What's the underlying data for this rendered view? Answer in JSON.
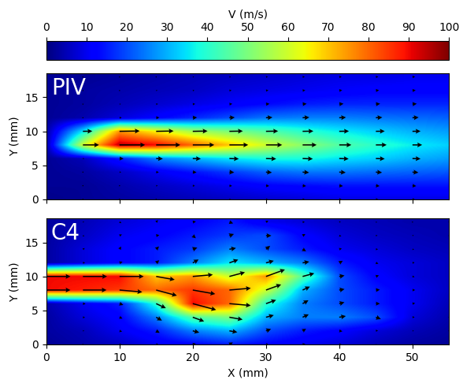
{
  "colorbar": {
    "label": "V (m/s)",
    "range": [
      0,
      100
    ],
    "ticks": [
      0,
      10,
      20,
      30,
      40,
      50,
      60,
      70,
      80,
      90,
      100
    ],
    "color": "jet"
  },
  "chart_data": [
    {
      "type": "heatmap",
      "title": "PIV",
      "ylabel": "Y (mm)",
      "tick_labels": "y",
      "x": [
        0,
        5,
        10,
        15,
        20,
        25,
        30,
        35,
        40,
        45,
        50,
        55
      ],
      "y": [
        0,
        2,
        4,
        6,
        8,
        10,
        12,
        14,
        16,
        18
      ],
      "xlim": [
        0,
        55
      ],
      "ylim": [
        0,
        18.5
      ],
      "xticks": [
        0,
        10,
        20,
        30,
        40,
        50
      ],
      "yticks": [
        0,
        5,
        10,
        15
      ],
      "values": [
        [
          1,
          2,
          3,
          4,
          5,
          6,
          7,
          8,
          9,
          9,
          9,
          9
        ],
        [
          2,
          2,
          4,
          6,
          8,
          10,
          12,
          13,
          14,
          14,
          14,
          14
        ],
        [
          2,
          3,
          6,
          10,
          14,
          18,
          22,
          24,
          24,
          23,
          22,
          21
        ],
        [
          2,
          5,
          15,
          25,
          30,
          35,
          38,
          38,
          35,
          33,
          30,
          28
        ],
        [
          3,
          60,
          95,
          90,
          80,
          70,
          60,
          52,
          45,
          40,
          36,
          33
        ],
        [
          3,
          35,
          75,
          65,
          55,
          50,
          45,
          40,
          36,
          33,
          30,
          28
        ],
        [
          2,
          4,
          8,
          12,
          16,
          20,
          24,
          25,
          25,
          24,
          23,
          22
        ],
        [
          2,
          3,
          5,
          7,
          9,
          11,
          13,
          15,
          16,
          16,
          16,
          16
        ],
        [
          2,
          3,
          4,
          5,
          6,
          8,
          9,
          10,
          11,
          12,
          12,
          12
        ],
        [
          2,
          2,
          3,
          4,
          5,
          6,
          7,
          8,
          9,
          9,
          10,
          10
        ]
      ],
      "direction": [
        [
          -5,
          -5,
          -5,
          -5,
          -5,
          -5,
          -5,
          -5,
          -5,
          -5,
          -5,
          -5
        ],
        [
          -5,
          -5,
          -5,
          -5,
          -5,
          -5,
          -5,
          -5,
          -5,
          -5,
          -5,
          -5
        ],
        [
          -4,
          -4,
          -4,
          -4,
          -4,
          -4,
          -4,
          -4,
          -4,
          -4,
          -4,
          -4
        ],
        [
          -2,
          -2,
          -2,
          -2,
          -2,
          -2,
          -2,
          -2,
          -2,
          -2,
          -2,
          -2
        ],
        [
          0,
          0,
          0,
          0,
          0,
          0,
          0,
          0,
          0,
          0,
          0,
          0
        ],
        [
          1,
          1,
          1,
          1,
          1,
          1,
          1,
          1,
          1,
          1,
          1,
          1
        ],
        [
          3,
          3,
          3,
          3,
          3,
          3,
          3,
          3,
          3,
          3,
          3,
          3
        ],
        [
          5,
          5,
          5,
          5,
          5,
          5,
          5,
          5,
          5,
          5,
          5,
          5
        ],
        [
          5,
          5,
          5,
          5,
          5,
          5,
          5,
          5,
          5,
          5,
          5,
          5
        ],
        [
          5,
          5,
          5,
          5,
          5,
          5,
          5,
          5,
          5,
          5,
          5,
          5
        ]
      ]
    },
    {
      "type": "heatmap",
      "title": "C4",
      "xlabel": "X (mm)",
      "ylabel": "Y (mm)",
      "x": [
        0,
        5,
        10,
        15,
        20,
        25,
        30,
        35,
        40,
        45,
        50,
        55
      ],
      "y": [
        0,
        2,
        4,
        6,
        8,
        10,
        12,
        14,
        16,
        18
      ],
      "xlim": [
        0,
        55
      ],
      "ylim": [
        0,
        18.5
      ],
      "xticks": [
        0,
        10,
        20,
        30,
        40,
        50
      ],
      "yticks": [
        0,
        5,
        10,
        15
      ],
      "values": [
        [
          2,
          4,
          6,
          10,
          12,
          15,
          12,
          10,
          8,
          5,
          3,
          2
        ],
        [
          3,
          5,
          10,
          15,
          25,
          30,
          20,
          15,
          12,
          8,
          5,
          3
        ],
        [
          3,
          8,
          12,
          25,
          45,
          50,
          30,
          25,
          25,
          20,
          8,
          4
        ],
        [
          4,
          10,
          15,
          40,
          90,
          80,
          40,
          25,
          20,
          15,
          10,
          5
        ],
        [
          90,
          88,
          85,
          80,
          85,
          80,
          60,
          30,
          20,
          15,
          10,
          6
        ],
        [
          90,
          90,
          90,
          70,
          75,
          60,
          75,
          45,
          20,
          12,
          8,
          6
        ],
        [
          3,
          8,
          12,
          15,
          25,
          35,
          30,
          25,
          15,
          10,
          8,
          6
        ],
        [
          3,
          8,
          12,
          15,
          18,
          25,
          20,
          15,
          10,
          8,
          6,
          5
        ],
        [
          3,
          6,
          10,
          12,
          15,
          18,
          20,
          12,
          8,
          6,
          5,
          4
        ],
        [
          3,
          5,
          8,
          10,
          12,
          15,
          10,
          8,
          6,
          5,
          4,
          4
        ]
      ],
      "direction": [
        [
          0,
          10,
          20,
          -10,
          15,
          30,
          -20,
          10,
          0,
          -30,
          20,
          0
        ],
        [
          0,
          5,
          -20,
          -30,
          -15,
          -10,
          20,
          30,
          -10,
          10,
          0,
          15
        ],
        [
          0,
          -10,
          -25,
          -30,
          -20,
          -10,
          15,
          25,
          10,
          -20,
          5,
          0
        ],
        [
          0,
          -5,
          -20,
          -25,
          -15,
          -5,
          20,
          30,
          15,
          0,
          10,
          0
        ],
        [
          0,
          0,
          -5,
          -15,
          -10,
          5,
          20,
          25,
          10,
          5,
          0,
          -10
        ],
        [
          0,
          0,
          0,
          -10,
          5,
          15,
          20,
          15,
          10,
          20,
          -15,
          0
        ],
        [
          0,
          5,
          20,
          40,
          30,
          20,
          15,
          10,
          30,
          -20,
          10,
          0
        ],
        [
          0,
          30,
          60,
          45,
          20,
          10,
          40,
          -30,
          20,
          0,
          -10,
          15
        ],
        [
          0,
          -20,
          30,
          10,
          -40,
          20,
          0,
          30,
          -15,
          10,
          20,
          0
        ],
        [
          0,
          20,
          -30,
          45,
          10,
          -20,
          30,
          0,
          20,
          -10,
          0,
          10
        ]
      ]
    }
  ]
}
